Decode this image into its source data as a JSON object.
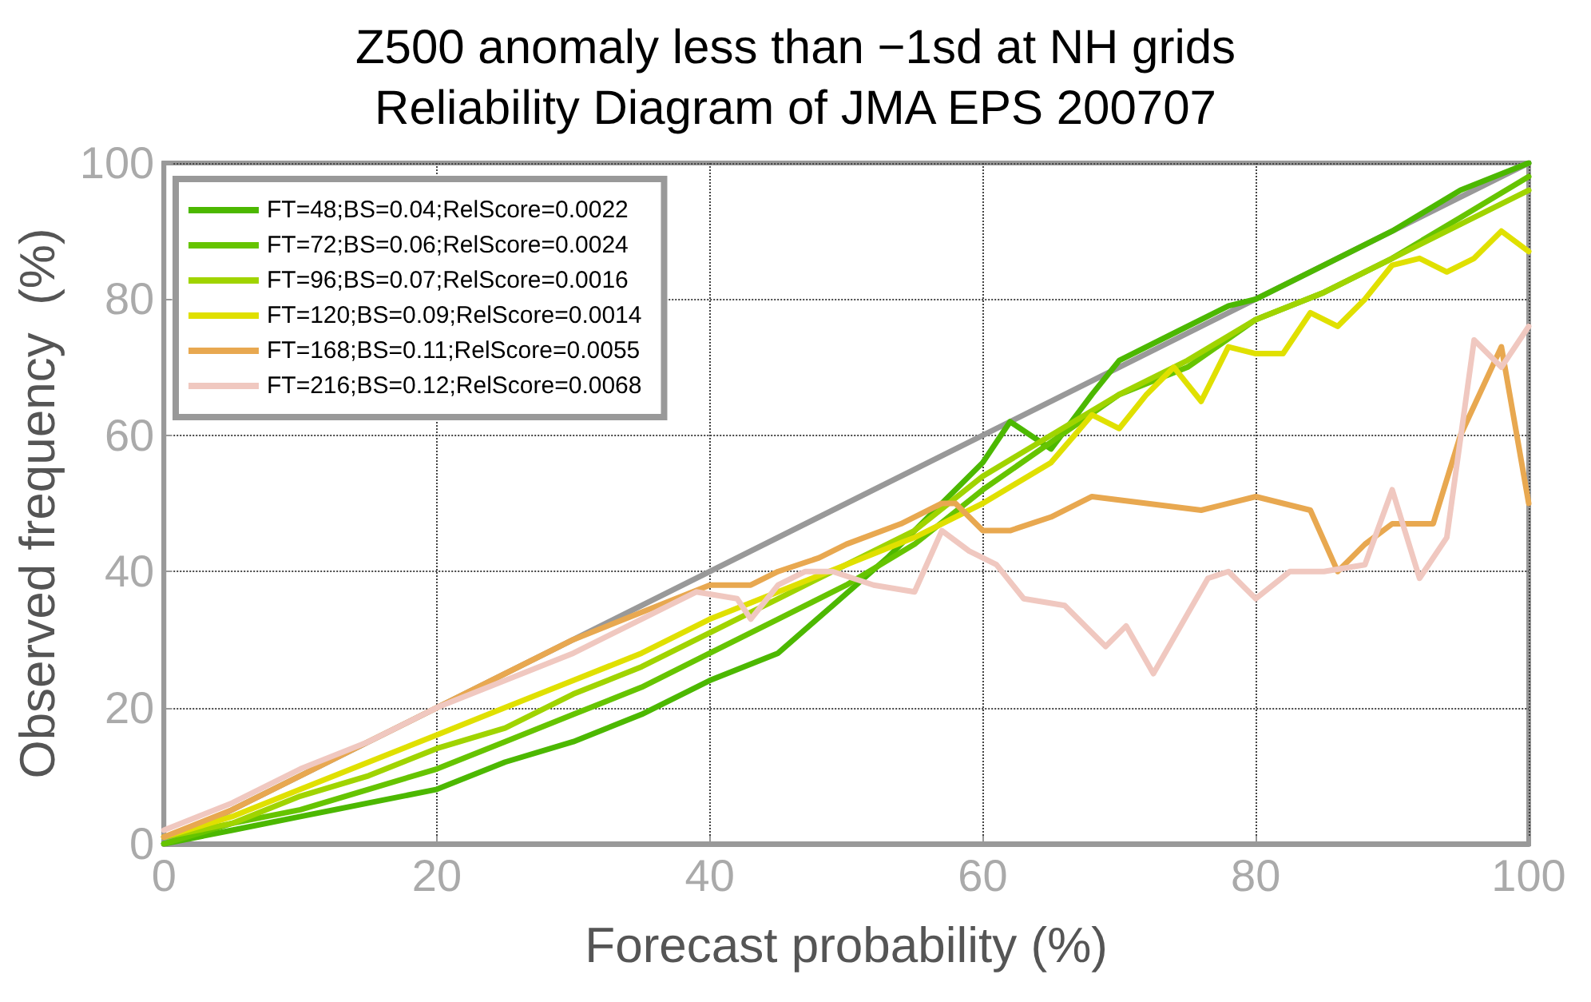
{
  "chart_data": {
    "type": "line",
    "title": "Z500 anomaly less than −1sd at NH grids\nReliability Diagram of JMA EPS 200707",
    "xlabel": "Forecast probability (%)",
    "ylabel": "Observed frequency  (%)",
    "xlim": [
      0,
      100
    ],
    "ylim": [
      0,
      100
    ],
    "xticks": [
      0,
      20,
      40,
      60,
      80,
      100
    ],
    "yticks": [
      0,
      20,
      40,
      60,
      80,
      100
    ],
    "grid": true,
    "legend": "top left",
    "marker": "none",
    "line_style": "solid",
    "series": [
      {
        "color": "#999999",
        "x": [
          0,
          100
        ],
        "values": [
          0,
          100
        ]
      },
      {
        "name": "FT=48;BS=0.04;RelScore=0.0022",
        "color": "#4cb800",
        "x": [
          0,
          5,
          10,
          15,
          20,
          25,
          30,
          35,
          40,
          45,
          49,
          53,
          57,
          60,
          62,
          65,
          68,
          70,
          74,
          78,
          80,
          85,
          90,
          95,
          100
        ],
        "values": [
          0,
          2,
          4,
          6,
          8,
          12,
          15,
          19,
          24,
          28,
          35,
          42,
          50,
          56,
          62,
          58,
          66,
          71,
          75,
          79,
          80,
          85,
          90,
          96,
          100
        ]
      },
      {
        "name": "FT=72;BS=0.06;RelScore=0.0024",
        "color": "#66c400",
        "x": [
          0,
          5,
          10,
          15,
          20,
          25,
          30,
          35,
          40,
          45,
          50,
          55,
          60,
          65,
          70,
          75,
          80,
          85,
          90,
          95,
          100
        ],
        "values": [
          0,
          3,
          5,
          8,
          11,
          15,
          19,
          23,
          28,
          33,
          38,
          44,
          52,
          59,
          66,
          70,
          77,
          81,
          86,
          92,
          98
        ]
      },
      {
        "name": "FT=96;BS=0.07;RelScore=0.0016",
        "color": "#a0d400",
        "x": [
          0,
          5,
          10,
          15,
          20,
          25,
          30,
          35,
          40,
          45,
          50,
          55,
          60,
          65,
          70,
          75,
          80,
          85,
          90,
          95,
          100
        ],
        "values": [
          1,
          3,
          7,
          10,
          14,
          17,
          22,
          26,
          31,
          36,
          41,
          46,
          54,
          60,
          66,
          71,
          77,
          81,
          86,
          91,
          96
        ]
      },
      {
        "name": "FT=120;BS=0.09;RelScore=0.0014",
        "color": "#e0e000",
        "x": [
          0,
          5,
          10,
          15,
          20,
          25,
          30,
          35,
          40,
          45,
          50,
          55,
          60,
          65,
          68,
          70,
          72,
          74,
          76,
          78,
          80,
          82,
          84,
          86,
          88,
          90,
          92,
          94,
          96,
          98,
          100
        ],
        "values": [
          1,
          4,
          8,
          12,
          16,
          20,
          24,
          28,
          33,
          37,
          41,
          45,
          50,
          56,
          63,
          61,
          66,
          70,
          65,
          73,
          72,
          72,
          78,
          76,
          80,
          85,
          86,
          84,
          86,
          90,
          87
        ]
      },
      {
        "name": "FT=168;BS=0.11;RelScore=0.0055",
        "color": "#e8a850",
        "x": [
          0,
          5,
          10,
          15,
          20,
          25,
          30,
          35,
          40,
          43,
          45,
          48,
          50,
          54,
          57,
          58,
          60,
          62,
          65,
          68,
          72,
          76,
          80,
          84,
          86,
          88,
          90,
          93,
          95,
          98,
          100
        ],
        "values": [
          1,
          5,
          10,
          15,
          20,
          25,
          30,
          34,
          38,
          38,
          40,
          42,
          44,
          47,
          50,
          50,
          46,
          46,
          48,
          51,
          50,
          49,
          51,
          49,
          40,
          44,
          47,
          47,
          60,
          73,
          50
        ]
      },
      {
        "name": "FT=216;BS=0.12;RelScore=0.0068",
        "color": "#f0c8c0",
        "x": [
          0,
          5,
          10,
          15,
          20,
          25,
          30,
          35,
          39,
          42,
          43,
          45,
          47,
          49,
          52,
          55,
          57,
          59,
          61,
          63,
          66,
          69,
          70.5,
          72.5,
          76.5,
          78,
          80,
          82.5,
          85,
          88,
          90,
          92,
          94,
          96,
          98,
          100
        ],
        "values": [
          2,
          6,
          11,
          15,
          20,
          24,
          28,
          33,
          37,
          36,
          33,
          38,
          40,
          40,
          38,
          37,
          46,
          43,
          41,
          36,
          35,
          29,
          32,
          25,
          39,
          40,
          36,
          40,
          40,
          41,
          52,
          39,
          45,
          74,
          70,
          76
        ]
      }
    ]
  }
}
